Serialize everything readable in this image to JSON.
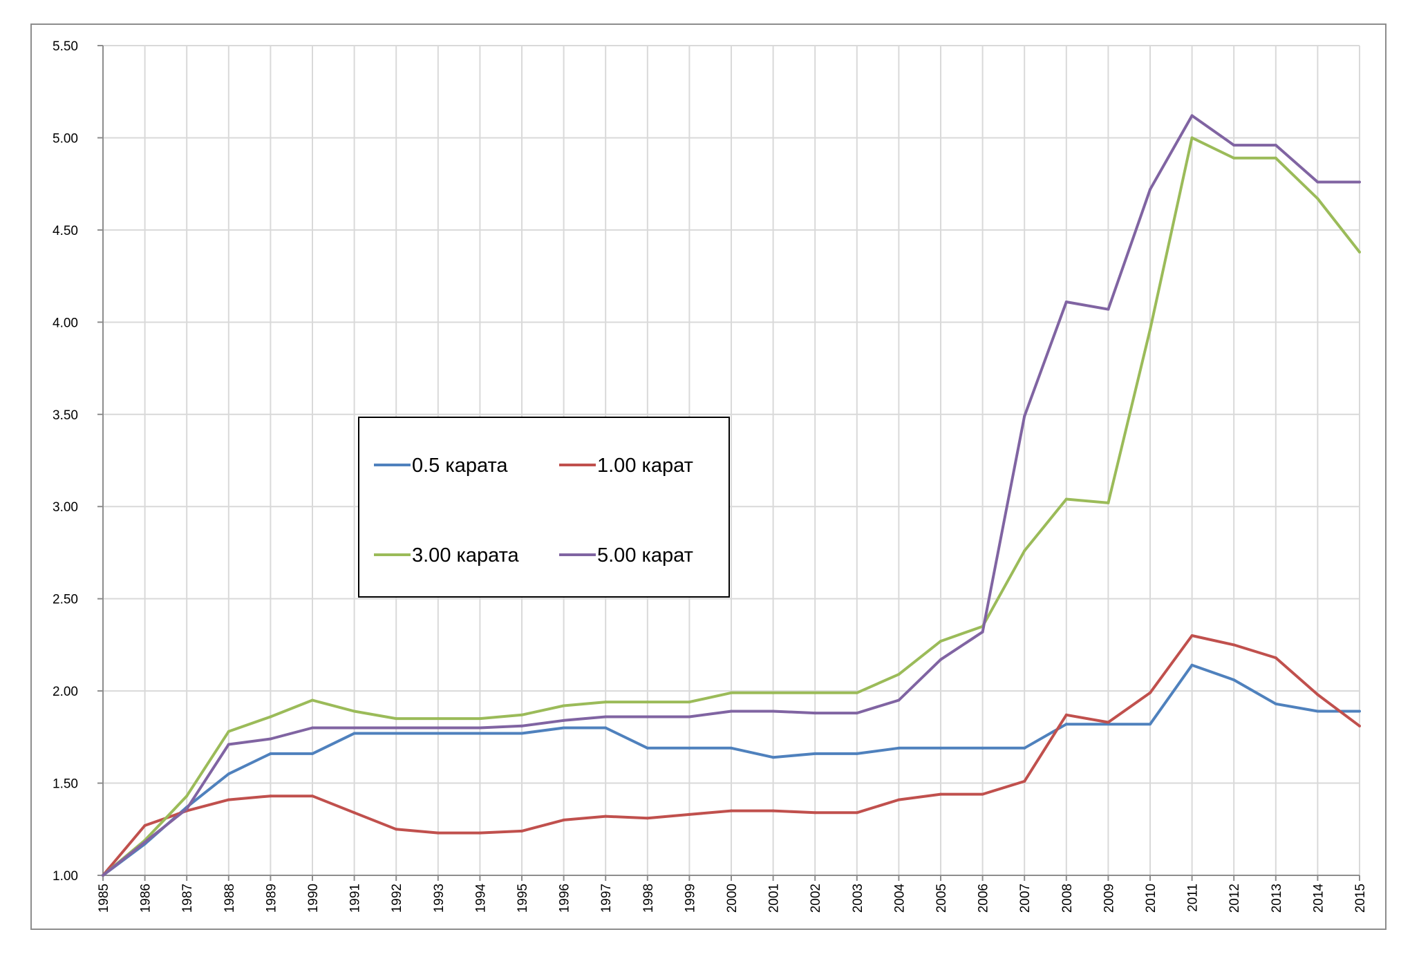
{
  "chart_data": {
    "type": "line",
    "title": "",
    "xlabel": "",
    "ylabel": "",
    "ylim": [
      1.0,
      5.5
    ],
    "yticks": [
      "1.00",
      "1.50",
      "2.00",
      "2.50",
      "3.00",
      "3.50",
      "4.00",
      "4.50",
      "5.00",
      "5.50"
    ],
    "grid": true,
    "legend_position": "center-left",
    "x": [
      "1985",
      "1986",
      "1987",
      "1988",
      "1989",
      "1990",
      "1991",
      "1992",
      "1993",
      "1994",
      "1995",
      "1996",
      "1997",
      "1998",
      "1999",
      "2000",
      "2001",
      "2002",
      "2003",
      "2004",
      "2005",
      "2006",
      "2007",
      "2008",
      "2009",
      "2010",
      "2011",
      "2012",
      "2013",
      "2014",
      "2015"
    ],
    "series": [
      {
        "name": "0.5 карата",
        "color": "#4f81bd",
        "values": [
          1.0,
          1.17,
          1.37,
          1.55,
          1.66,
          1.66,
          1.77,
          1.77,
          1.77,
          1.77,
          1.77,
          1.8,
          1.8,
          1.69,
          1.69,
          1.69,
          1.64,
          1.66,
          1.66,
          1.69,
          1.69,
          1.69,
          1.69,
          1.82,
          1.82,
          1.82,
          2.14,
          2.06,
          1.93,
          1.89,
          1.89
        ]
      },
      {
        "name": "1.00 карат",
        "color": "#c0504d",
        "values": [
          1.0,
          1.27,
          1.35,
          1.41,
          1.43,
          1.43,
          1.34,
          1.25,
          1.23,
          1.23,
          1.24,
          1.3,
          1.32,
          1.31,
          1.33,
          1.35,
          1.35,
          1.34,
          1.34,
          1.41,
          1.44,
          1.44,
          1.51,
          1.87,
          1.83,
          1.99,
          2.3,
          2.25,
          2.18,
          1.98,
          1.81
        ]
      },
      {
        "name": "3.00 карата",
        "color": "#9bbb59",
        "values": [
          1.0,
          1.19,
          1.43,
          1.78,
          1.86,
          1.95,
          1.89,
          1.85,
          1.85,
          1.85,
          1.87,
          1.92,
          1.94,
          1.94,
          1.94,
          1.99,
          1.99,
          1.99,
          1.99,
          2.09,
          2.27,
          2.35,
          2.76,
          3.04,
          3.02,
          3.96,
          5.0,
          4.89,
          4.89,
          4.67,
          4.38
        ]
      },
      {
        "name": "5.00 карат",
        "color": "#8064a2",
        "values": [
          1.0,
          1.18,
          1.36,
          1.71,
          1.74,
          1.8,
          1.8,
          1.8,
          1.8,
          1.8,
          1.81,
          1.84,
          1.86,
          1.86,
          1.86,
          1.89,
          1.89,
          1.88,
          1.88,
          1.95,
          2.17,
          2.32,
          3.49,
          4.11,
          4.07,
          4.72,
          5.12,
          4.96,
          4.96,
          4.76,
          4.76
        ]
      }
    ]
  }
}
